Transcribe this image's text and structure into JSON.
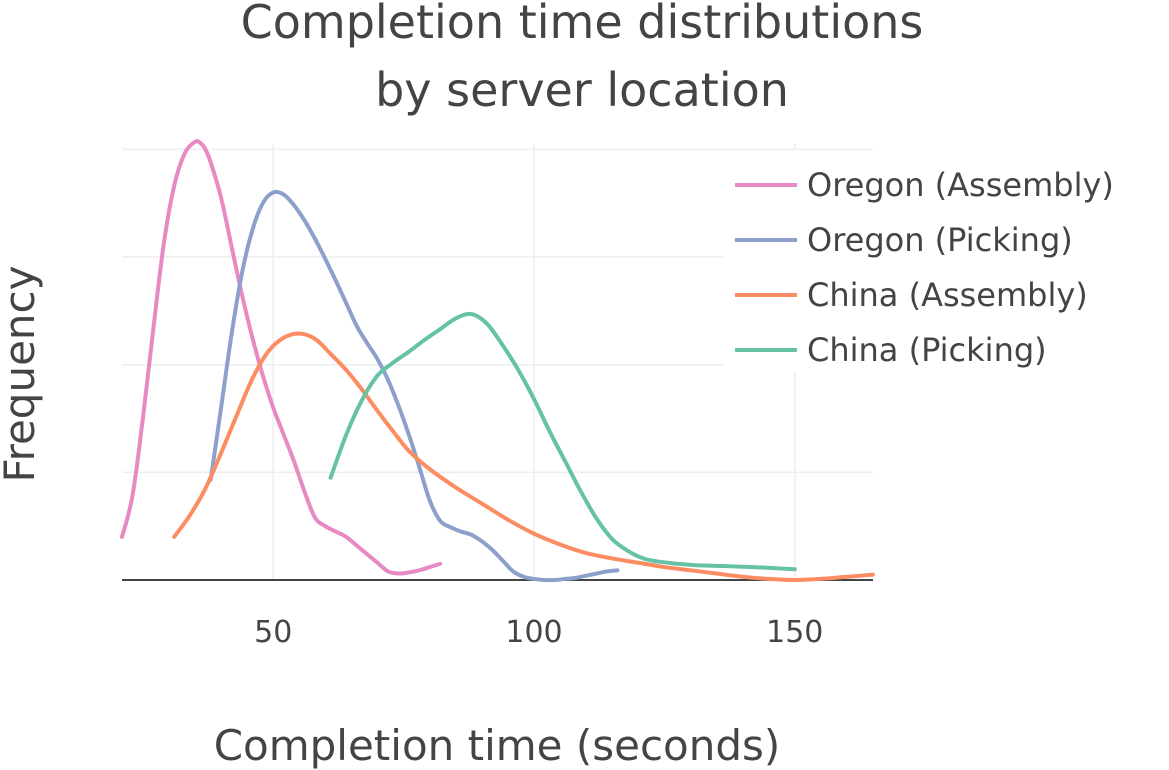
{
  "chart_data": {
    "type": "line",
    "title_lines": [
      "Completion time distributions",
      "by server location"
    ],
    "xlabel": "Completion time (seconds)",
    "ylabel": "Frequency",
    "xlim": [
      21,
      165
    ],
    "ylim": [
      0,
      4.05
    ],
    "x_ticks": [
      50,
      100,
      150
    ],
    "y_gridlines": [
      0,
      1,
      2,
      3,
      4
    ],
    "y_ticklabels_shown": false,
    "grid": true,
    "legend_position": "top-right",
    "series": [
      {
        "name": "Oregon (Assembly)",
        "color": "#e78ac3",
        "x": [
          21,
          23,
          25,
          27,
          29,
          31,
          33,
          35,
          36,
          37,
          38,
          40,
          42,
          44,
          46,
          48,
          50,
          52,
          54,
          56,
          58,
          60,
          62,
          64,
          66,
          68,
          70,
          72,
          74,
          76,
          78,
          80,
          82
        ],
        "y": [
          0.4,
          0.78,
          1.5,
          2.33,
          3.12,
          3.66,
          3.96,
          4.07,
          4.06,
          4.0,
          3.88,
          3.55,
          3.1,
          2.65,
          2.25,
          1.9,
          1.6,
          1.35,
          1.1,
          0.82,
          0.58,
          0.5,
          0.45,
          0.4,
          0.32,
          0.24,
          0.16,
          0.08,
          0.06,
          0.07,
          0.09,
          0.12,
          0.15
        ]
      },
      {
        "name": "Oregon (Picking)",
        "color": "#8da0cb",
        "x": [
          38,
          40,
          42,
          44,
          46,
          48,
          50,
          52,
          54,
          56,
          58,
          60,
          62,
          64,
          66,
          68,
          70,
          72,
          74,
          76,
          78,
          80,
          82,
          84,
          86,
          88,
          90,
          92,
          94,
          96,
          98,
          100,
          102,
          104,
          106,
          108,
          110,
          112,
          114,
          116
        ],
        "y": [
          0.93,
          1.6,
          2.28,
          2.85,
          3.25,
          3.5,
          3.6,
          3.58,
          3.48,
          3.34,
          3.17,
          2.98,
          2.78,
          2.57,
          2.36,
          2.2,
          2.05,
          1.86,
          1.62,
          1.35,
          1.05,
          0.74,
          0.55,
          0.49,
          0.45,
          0.42,
          0.36,
          0.28,
          0.18,
          0.08,
          0.03,
          0.01,
          0.0,
          0.0,
          0.01,
          0.02,
          0.04,
          0.06,
          0.08,
          0.09
        ]
      },
      {
        "name": "China (Assembly)",
        "color": "#fc8d62",
        "x": [
          31,
          34,
          37,
          40,
          43,
          46,
          49,
          52,
          55,
          58,
          61,
          64,
          67,
          70,
          73,
          76,
          80,
          85,
          90,
          95,
          100,
          105,
          110,
          115,
          120,
          125,
          130,
          135,
          140,
          145,
          150,
          155,
          160,
          165
        ],
        "y": [
          0.4,
          0.6,
          0.85,
          1.18,
          1.53,
          1.87,
          2.12,
          2.25,
          2.29,
          2.24,
          2.1,
          1.95,
          1.77,
          1.57,
          1.38,
          1.2,
          1.03,
          0.86,
          0.71,
          0.56,
          0.43,
          0.33,
          0.25,
          0.2,
          0.16,
          0.12,
          0.09,
          0.06,
          0.03,
          0.01,
          0.0,
          0.01,
          0.03,
          0.05
        ]
      },
      {
        "name": "China (Picking)",
        "color": "#66c2a5",
        "x": [
          61,
          64,
          67,
          70,
          73,
          76,
          79,
          82,
          85,
          88,
          91,
          94,
          97,
          100,
          103,
          106,
          109,
          112,
          115,
          118,
          121,
          124,
          130,
          136,
          142,
          146,
          150
        ],
        "y": [
          0.95,
          1.35,
          1.67,
          1.9,
          2.02,
          2.12,
          2.23,
          2.33,
          2.43,
          2.47,
          2.38,
          2.18,
          1.95,
          1.68,
          1.38,
          1.1,
          0.82,
          0.57,
          0.38,
          0.27,
          0.2,
          0.17,
          0.14,
          0.13,
          0.12,
          0.11,
          0.1
        ]
      }
    ]
  }
}
